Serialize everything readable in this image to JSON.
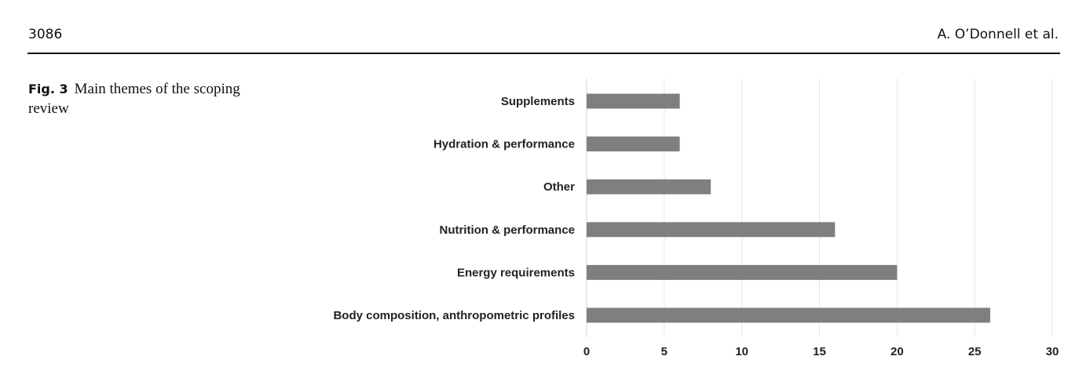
{
  "header": {
    "page_number": "3086",
    "author": "A. O’Donnell et al."
  },
  "caption": {
    "label": "Fig. 3",
    "text": "Main themes of the scoping review"
  },
  "chart_data": {
    "type": "bar",
    "orientation": "horizontal",
    "categories": [
      "Supplements",
      "Hydration & performance",
      "Other",
      "Nutrition & performance",
      "Energy requirements",
      "Body composition, anthropometric profiles"
    ],
    "values": [
      6,
      6,
      8,
      16,
      20,
      26
    ],
    "xlim": [
      0,
      30
    ],
    "xticks": [
      0,
      5,
      10,
      15,
      20,
      25,
      30
    ],
    "grid": true,
    "legend": "none",
    "bar_color": "#7f7f7f",
    "grid_color": "#e6e6e6",
    "title": "",
    "xlabel": "",
    "ylabel": ""
  }
}
